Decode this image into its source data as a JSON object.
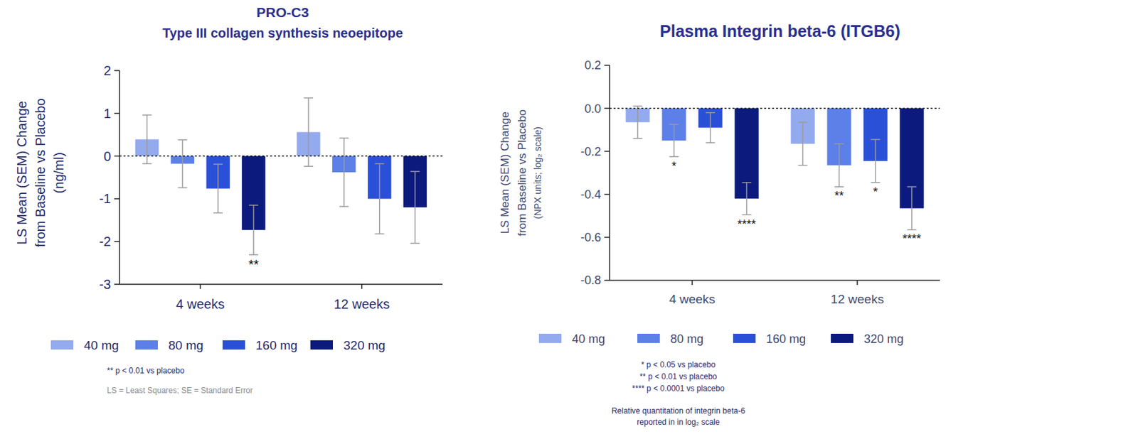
{
  "chart_data": [
    {
      "type": "bar",
      "title": "PRO-C3",
      "subtitle": "Type III collagen synthesis neoepitope",
      "y_label": [
        "LS Mean (SEM)  Change",
        "from  Baseline vs Placebo",
        "(ng/ml)"
      ],
      "categories": [
        "4 weeks",
        "12 weeks"
      ],
      "ylim": [
        -3,
        2
      ],
      "yticks": [
        -3,
        -2,
        -1,
        0,
        1,
        2
      ],
      "legend": "bottom",
      "series": [
        {
          "name": "40 mg",
          "color": "#93aaee",
          "values": [
            0.39,
            0.56
          ],
          "errors": [
            0.57,
            0.8
          ],
          "significance": [
            null,
            null
          ]
        },
        {
          "name": "80 mg",
          "color": "#5c80e8",
          "values": [
            -0.18,
            -0.38
          ],
          "errors": [
            0.56,
            0.8
          ],
          "significance": [
            null,
            null
          ]
        },
        {
          "name": "160 mg",
          "color": "#2b50d8",
          "values": [
            -0.76,
            -1.0
          ],
          "errors": [
            0.57,
            0.82
          ],
          "significance": [
            null,
            null
          ]
        },
        {
          "name": "320 mg",
          "color": "#0b1a7c",
          "values": [
            -1.73,
            -1.2
          ],
          "errors": [
            0.58,
            0.84
          ],
          "significance": [
            "**",
            null
          ]
        }
      ],
      "notes": [
        "** p < 0.01 vs placebo",
        "LS = Least Squares; SE = Standard Error"
      ]
    },
    {
      "type": "bar",
      "title": "Plasma Integrin beta-6 (ITGB6)",
      "y_label": [
        "LS Mean (SEM) Change",
        "from Baseline vs Placebo",
        "(NPX units; log₂ scale)"
      ],
      "categories": [
        "4 weeks",
        "12 weeks"
      ],
      "ylim": [
        -0.8,
        0.2
      ],
      "yticks": [
        -0.8,
        -0.6,
        -0.4,
        -0.2,
        {
          "value": 0,
          "label": "0.0"
        },
        0.2
      ],
      "legend": "bottom",
      "series": [
        {
          "name": "40 mg",
          "color": "#93aaee",
          "values": [
            -0.065,
            -0.165
          ],
          "errors": [
            0.075,
            0.1
          ],
          "significance": [
            null,
            null
          ]
        },
        {
          "name": "80 mg",
          "color": "#5c80e8",
          "values": [
            -0.15,
            -0.265
          ],
          "errors": [
            0.075,
            0.1
          ],
          "significance": [
            "*",
            "**"
          ]
        },
        {
          "name": "160 mg",
          "color": "#2b50d8",
          "values": [
            -0.09,
            -0.245
          ],
          "errors": [
            0.07,
            0.1
          ],
          "significance": [
            null,
            "*"
          ]
        },
        {
          "name": "320 mg",
          "color": "#0b1a7c",
          "values": [
            -0.42,
            -0.465
          ],
          "errors": [
            0.075,
            0.1
          ],
          "significance": [
            "****",
            "****"
          ]
        }
      ],
      "notes": [
        "* p < 0.05 vs placebo",
        "** p < 0.01 vs placebo",
        "**** p < 0.0001 vs placebo",
        "Relative quantitation of integrin beta-6",
        "reported in in log₂ scale"
      ]
    }
  ]
}
